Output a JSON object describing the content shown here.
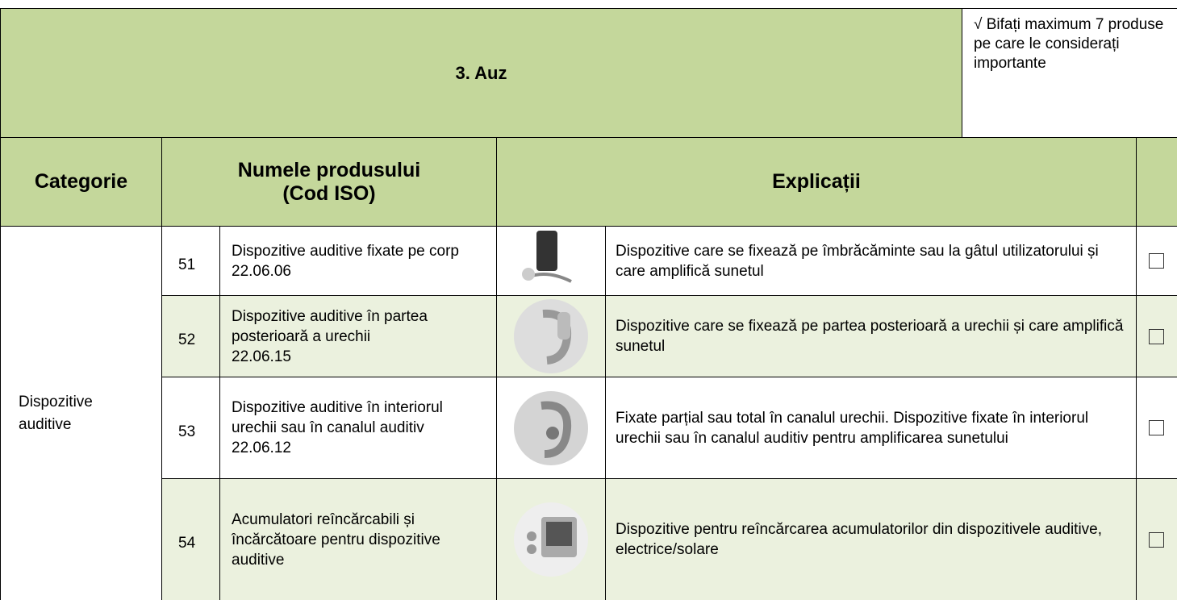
{
  "header": {
    "title": "3. Auz",
    "note": "√ Bifați maximum 7 produse pe care le considerați importante"
  },
  "columns": [
    "Categorie",
    "Numele produsului (Cod ISO)",
    "Explicații"
  ],
  "category": "Dispozitive auditive",
  "rows": [
    {
      "number": "51",
      "name": "Dispozitive auditive fixate pe corp",
      "code": "22.06.06",
      "explanation": "Dispozitive care se fixează pe îmbrăcăminte sau la gâtul utilizatorului și care amplifică sunetul"
    },
    {
      "number": "52",
      "name": "Dispozitive auditive în partea posterioară a urechii",
      "code": "22.06.15",
      "explanation": "Dispozitive care se fixează pe partea posterioară a urechii și care amplifică sunetul"
    },
    {
      "number": "53",
      "name": "Dispozitive auditive în interiorul urechii sau în canalul auditiv",
      "code": "22.06.12",
      "explanation": "Fixate parțial sau total în canalul urechii. Dispozitive fixate în interiorul urechii sau în canalul auditiv pentru amplificarea sunetului"
    },
    {
      "number": "54",
      "name": "Acumulatori reîncărcabili și încărcătoare pentru dispozitive auditive",
      "explanation": "Dispozitive pentru reîncărcarea acumulatorilor din dispozitivele auditive, electrice/solare"
    }
  ]
}
